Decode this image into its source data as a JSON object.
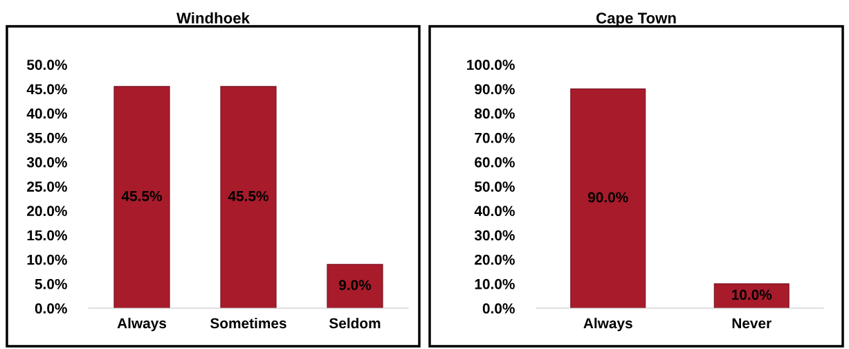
{
  "chart_data": [
    {
      "type": "bar",
      "title": "Windhoek",
      "categories": [
        "Always",
        "Sometimes",
        "Seldom"
      ],
      "values": [
        45.5,
        45.5,
        9.0
      ],
      "value_labels": [
        "45.5%",
        "45.5%",
        "9.0%"
      ],
      "color": "#a81b2b",
      "ylim": [
        0,
        50
      ],
      "yticks": [
        {
          "value": 0,
          "label": "0.0%"
        },
        {
          "value": 5,
          "label": "5.0%"
        },
        {
          "value": 10,
          "label": "10.0%"
        },
        {
          "value": 15,
          "label": "15.0%"
        },
        {
          "value": 20,
          "label": "20.0%"
        },
        {
          "value": 25,
          "label": "25.0%"
        },
        {
          "value": 30,
          "label": "30.0%"
        },
        {
          "value": 35,
          "label": "35.0%"
        },
        {
          "value": 40,
          "label": "40.0%"
        },
        {
          "value": 45,
          "label": "45.0%"
        },
        {
          "value": 50,
          "label": "50.0%"
        }
      ],
      "grid": false,
      "legend": false
    },
    {
      "type": "bar",
      "title": "Cape Town",
      "categories": [
        "Always",
        "Never"
      ],
      "values": [
        90.0,
        10.0
      ],
      "value_labels": [
        "90.0%",
        "10.0%"
      ],
      "color": "#a81b2b",
      "ylim": [
        0,
        100
      ],
      "yticks": [
        {
          "value": 0,
          "label": "0.0%"
        },
        {
          "value": 10,
          "label": "10.0%"
        },
        {
          "value": 20,
          "label": "20.0%"
        },
        {
          "value": 30,
          "label": "30.0%"
        },
        {
          "value": 40,
          "label": "40.0%"
        },
        {
          "value": 50,
          "label": "50.0%"
        },
        {
          "value": 60,
          "label": "60.0%"
        },
        {
          "value": 70,
          "label": "70.0%"
        },
        {
          "value": 80,
          "label": "80.0%"
        },
        {
          "value": 90,
          "label": "90.0%"
        },
        {
          "value": 100,
          "label": "100.0%"
        }
      ],
      "grid": false,
      "legend": false
    }
  ]
}
